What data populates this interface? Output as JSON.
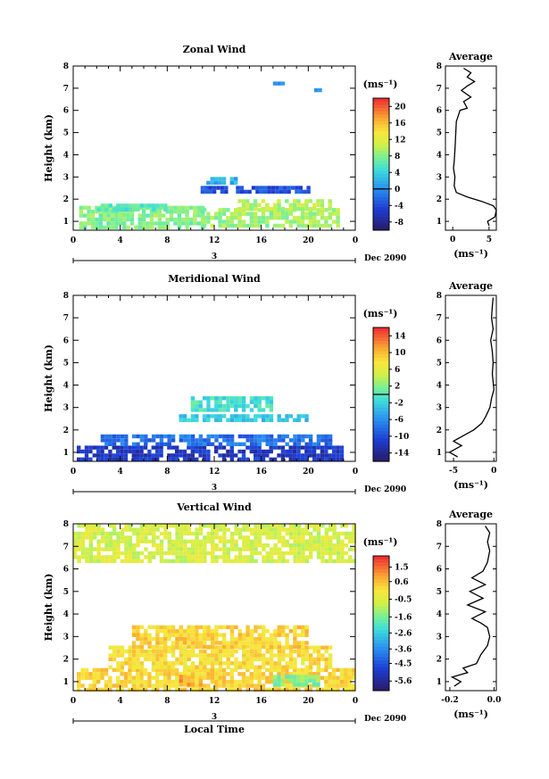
{
  "chart_data": [
    {
      "type": "heatmap",
      "title": "Zonal Wind",
      "ylabel": "Height (km)",
      "x_ticks": [
        "0",
        "4",
        "8",
        "12",
        "16",
        "20",
        "0"
      ],
      "y_ticks": [
        "1",
        "2",
        "3",
        "4",
        "5",
        "6",
        "7",
        "8"
      ],
      "day_label": "3",
      "date_label": "Dec 2090",
      "xlim": [
        0,
        24
      ],
      "ylim": [
        0.6,
        8
      ],
      "colorbar": {
        "unit": "(ms⁻¹)",
        "ticks": [
          "20",
          "16",
          "12",
          "8",
          "4",
          "0",
          "-4",
          "-8"
        ],
        "values": [
          20,
          16,
          12,
          8,
          4,
          0,
          -4,
          -8
        ],
        "range": [
          -10,
          22
        ],
        "contour": 0
      },
      "average": {
        "title": "Average",
        "xlabel": "(ms⁻¹)",
        "x_ticks": [
          "0",
          "5"
        ],
        "xlim": [
          -1,
          6
        ],
        "profile": [
          [
            5.0,
            0.8
          ],
          [
            4.8,
            1.0
          ],
          [
            5.8,
            1.2
          ],
          [
            6.0,
            1.5
          ],
          [
            5.6,
            1.7
          ],
          [
            4.0,
            1.9
          ],
          [
            2.0,
            2.1
          ],
          [
            0.5,
            2.3
          ],
          [
            0.2,
            2.6
          ],
          [
            0.3,
            3.0
          ],
          [
            0.1,
            3.4
          ],
          [
            0.2,
            3.7
          ],
          [
            0.3,
            4.2
          ],
          [
            0.5,
            5.5
          ],
          [
            1.0,
            6.0
          ],
          [
            2.0,
            6.1
          ],
          [
            1.5,
            6.4
          ],
          [
            2.5,
            6.6
          ],
          [
            1.2,
            6.9
          ],
          [
            2.0,
            7.1
          ],
          [
            3.0,
            7.3
          ],
          [
            2.0,
            7.5
          ],
          [
            2.5,
            7.7
          ],
          [
            1.5,
            7.9
          ]
        ]
      },
      "patches": [
        {
          "x": [
            0.5,
            11
          ],
          "y": [
            0.8,
            1.7
          ],
          "c": 8
        },
        {
          "x": [
            11,
            22.5
          ],
          "y": [
            0.8,
            1.6
          ],
          "c": 9
        },
        {
          "x": [
            2,
            8
          ],
          "y": [
            1.5,
            1.8
          ],
          "c": 6
        },
        {
          "x": [
            14,
            22
          ],
          "y": [
            1.5,
            2.0
          ],
          "c": 10
        },
        {
          "x": [
            10.5,
            20
          ],
          "y": [
            2.4,
            2.6
          ],
          "c": -4
        },
        {
          "x": [
            11,
            14
          ],
          "y": [
            2.8,
            3.0
          ],
          "c": 2
        },
        {
          "x": [
            17,
            18
          ],
          "y": [
            7.2,
            7.3
          ],
          "c": 0
        },
        {
          "x": [
            20.5,
            21
          ],
          "y": [
            6.9,
            7.0
          ],
          "c": 0
        }
      ]
    },
    {
      "type": "heatmap",
      "title": "Meridional Wind",
      "ylabel": "Height (km)",
      "x_ticks": [
        "0",
        "4",
        "8",
        "12",
        "16",
        "20",
        "0"
      ],
      "y_ticks": [
        "1",
        "2",
        "3",
        "4",
        "5",
        "6",
        "7",
        "8"
      ],
      "day_label": "3",
      "date_label": "Dec 2090",
      "xlim": [
        0,
        24
      ],
      "ylim": [
        0.6,
        8
      ],
      "colorbar": {
        "unit": "(ms⁻¹)",
        "ticks": [
          "14",
          "10",
          "6",
          "2",
          "-2",
          "-6",
          "-10",
          "-14"
        ],
        "values": [
          14,
          10,
          6,
          2,
          -2,
          -6,
          -10,
          -14
        ],
        "range": [
          -16,
          16
        ],
        "contour": 0
      },
      "average": {
        "title": "Average",
        "xlabel": "(ms⁻¹)",
        "x_ticks": [
          "-5",
          "0"
        ],
        "xlim": [
          -6,
          0.3
        ],
        "profile": [
          [
            -4.5,
            0.8
          ],
          [
            -5.5,
            1.0
          ],
          [
            -4.0,
            1.3
          ],
          [
            -5.0,
            1.5
          ],
          [
            -3.5,
            1.8
          ],
          [
            -2.5,
            2.0
          ],
          [
            -1.5,
            2.3
          ],
          [
            -1.0,
            2.6
          ],
          [
            -0.5,
            3.0
          ],
          [
            -0.3,
            3.4
          ],
          [
            0,
            3.8
          ],
          [
            -0.2,
            4.5
          ],
          [
            -0.1,
            5.0
          ],
          [
            -0.2,
            5.5
          ],
          [
            -0.4,
            6.0
          ],
          [
            -0.1,
            6.5
          ],
          [
            -0.3,
            7.0
          ],
          [
            -0.2,
            7.5
          ],
          [
            -0.1,
            7.9
          ]
        ]
      },
      "patches": [
        {
          "x": [
            0.3,
            23
          ],
          "y": [
            0.7,
            1.3
          ],
          "c": -12
        },
        {
          "x": [
            2,
            22
          ],
          "y": [
            1.3,
            1.8
          ],
          "c": -8
        },
        {
          "x": [
            9,
            20
          ],
          "y": [
            2.4,
            2.7
          ],
          "c": -3
        },
        {
          "x": [
            10,
            17
          ],
          "y": [
            2.8,
            3.5
          ],
          "c": -1
        }
      ]
    },
    {
      "type": "heatmap",
      "title": "Vertical Wind",
      "ylabel": "Height (km)",
      "xlabel": "Local Time",
      "x_ticks": [
        "0",
        "4",
        "8",
        "12",
        "16",
        "20",
        "0"
      ],
      "y_ticks": [
        "1",
        "2",
        "3",
        "4",
        "5",
        "6",
        "7",
        "8"
      ],
      "day_label": "3",
      "date_label": "Dec 2090",
      "xlim": [
        0,
        24
      ],
      "ylim": [
        0.6,
        8
      ],
      "colorbar": {
        "unit": "(ms⁻¹)",
        "ticks": [
          "1.5",
          "0.6",
          "-0.5",
          "-1.6",
          "-2.6",
          "-3.6",
          "-4.5",
          "-5.6"
        ],
        "values": [
          1.5,
          0.6,
          -0.5,
          -1.6,
          -2.6,
          -3.6,
          -4.5,
          -5.6
        ],
        "range": [
          -6.2,
          2.2
        ]
      },
      "average": {
        "title": "Average",
        "xlabel": "(ms⁻¹)",
        "x_ticks": [
          "-0.2",
          "0.0"
        ],
        "xlim": [
          -0.22,
          0.01
        ],
        "profile": [
          [
            -0.18,
            0.8
          ],
          [
            -0.15,
            1.0
          ],
          [
            -0.19,
            1.2
          ],
          [
            -0.12,
            1.4
          ],
          [
            -0.14,
            1.6
          ],
          [
            -0.08,
            1.8
          ],
          [
            -0.06,
            2.2
          ],
          [
            -0.03,
            2.6
          ],
          [
            -0.02,
            3.0
          ],
          [
            -0.03,
            3.4
          ],
          [
            -0.06,
            3.6
          ],
          [
            -0.1,
            3.8
          ],
          [
            -0.04,
            4.1
          ],
          [
            -0.12,
            4.4
          ],
          [
            -0.05,
            4.7
          ],
          [
            -0.11,
            5.0
          ],
          [
            -0.04,
            5.3
          ],
          [
            -0.1,
            5.6
          ],
          [
            -0.05,
            5.9
          ],
          [
            -0.03,
            6.3
          ],
          [
            -0.02,
            6.8
          ],
          [
            -0.03,
            7.2
          ],
          [
            -0.02,
            7.6
          ],
          [
            -0.04,
            7.9
          ]
        ]
      },
      "patches": [
        {
          "x": [
            0.3,
            24
          ],
          "y": [
            0.7,
            1.6
          ],
          "c": 0.3
        },
        {
          "x": [
            3,
            22
          ],
          "y": [
            1.6,
            2.6
          ],
          "c": 0.2
        },
        {
          "x": [
            5,
            20
          ],
          "y": [
            2.6,
            3.5
          ],
          "c": 0.4
        },
        {
          "x": [
            0,
            24
          ],
          "y": [
            6.3,
            8.0
          ],
          "c": -0.6
        },
        {
          "x": [
            17,
            21
          ],
          "y": [
            0.8,
            1.3
          ],
          "c": -1.5
        },
        {
          "x": [
            9,
            11
          ],
          "y": [
            0.9,
            1.3
          ],
          "c": 1.0
        }
      ]
    }
  ]
}
